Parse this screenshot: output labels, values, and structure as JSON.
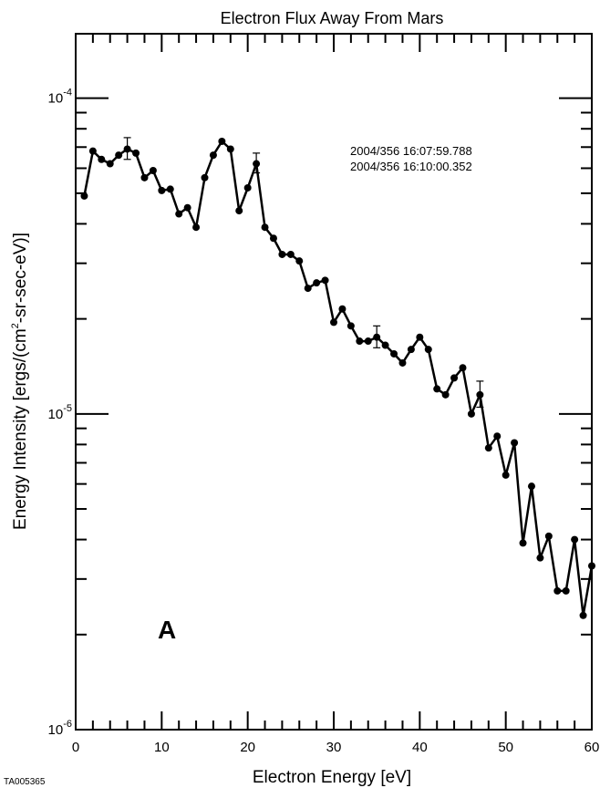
{
  "chart_data": {
    "type": "line",
    "title": "Electron Flux Away From Mars",
    "xlabel": "Electron Energy [eV]",
    "ylabel_parts": [
      "Energy Intensity [ergs/(cm",
      "2",
      "-sr-sec-eV)]"
    ],
    "xlim": [
      0,
      60
    ],
    "ylim": [
      1e-06,
      0.00016
    ],
    "y_scale": "log",
    "x_ticks": [
      0,
      10,
      20,
      30,
      40,
      50,
      60
    ],
    "y_ticks": [
      {
        "value": 1e-06,
        "base": "10",
        "exp": "-6"
      },
      {
        "value": 1e-05,
        "base": "10",
        "exp": "-5"
      },
      {
        "value": 0.0001,
        "base": "10",
        "exp": "-4"
      }
    ],
    "annotations": [
      "2004/356 16:07:59.788",
      "2004/356 16:10:00.352"
    ],
    "panel_label": "A",
    "figure_id": "TA005365",
    "series": [
      {
        "x": [
          1,
          2,
          3,
          4,
          5,
          6,
          7,
          8,
          9,
          10,
          11,
          12,
          13,
          14,
          15,
          16,
          17,
          18,
          19,
          20,
          21,
          22,
          23,
          24,
          25,
          26,
          27,
          28,
          29,
          30,
          31,
          32,
          33,
          34,
          35,
          36,
          37,
          38,
          39,
          40,
          41,
          42,
          43,
          44,
          45,
          46,
          47,
          48,
          49,
          50,
          51,
          52,
          53,
          54,
          55,
          56,
          57,
          58,
          59,
          60
        ],
        "y": [
          4.9e-05,
          6.8e-05,
          6.4e-05,
          6.2e-05,
          6.6e-05,
          6.9e-05,
          6.7e-05,
          5.6e-05,
          5.9e-05,
          5.1e-05,
          5.15e-05,
          4.3e-05,
          4.5e-05,
          3.9e-05,
          5.6e-05,
          6.6e-05,
          7.3e-05,
          6.9e-05,
          4.4e-05,
          5.2e-05,
          6.2e-05,
          3.9e-05,
          3.6e-05,
          3.2e-05,
          3.2e-05,
          3.05e-05,
          2.5e-05,
          2.6e-05,
          2.65e-05,
          1.95e-05,
          2.15e-05,
          1.9e-05,
          1.7e-05,
          1.7e-05,
          1.75e-05,
          1.65e-05,
          1.55e-05,
          1.45e-05,
          1.6e-05,
          1.75e-05,
          1.6e-05,
          1.2e-05,
          1.15e-05,
          1.3e-05,
          1.4e-05,
          1e-05,
          1.15e-05,
          7.8e-06,
          8.5e-06,
          6.4e-06,
          8.1e-06,
          3.9e-06,
          5.9e-06,
          3.5e-06,
          4.1e-06,
          2.75e-06,
          2.75e-06,
          4e-06,
          2.3e-06,
          3.3e-06
        ]
      }
    ],
    "error_bars": [
      {
        "x": 6,
        "low": 6.4e-05,
        "high": 7.5e-05
      },
      {
        "x": 21,
        "low": 5.8e-05,
        "high": 6.7e-05
      },
      {
        "x": 35,
        "low": 1.62e-05,
        "high": 1.9e-05
      },
      {
        "x": 47,
        "low": 1.05e-05,
        "high": 1.27e-05
      }
    ]
  }
}
